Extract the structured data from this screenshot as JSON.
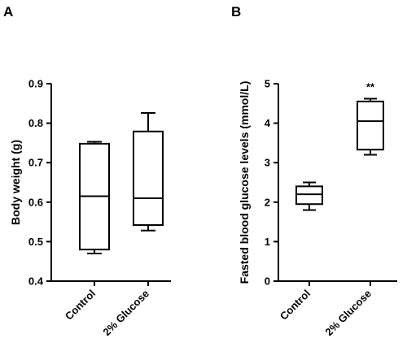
{
  "chart_data": [
    {
      "type": "box",
      "panel_label": "A",
      "title": "",
      "xlabel": "",
      "ylabel": "Body weight (g)",
      "ylim": [
        0.4,
        0.9
      ],
      "yticks": [
        "0.4",
        "0.5",
        "0.6",
        "0.7",
        "0.8",
        "0.9"
      ],
      "categories": [
        "Control",
        "2% Glucose"
      ],
      "boxes": [
        {
          "min": 0.47,
          "q1": 0.48,
          "median": 0.615,
          "q3": 0.748,
          "max": 0.753
        },
        {
          "min": 0.528,
          "q1": 0.542,
          "median": 0.61,
          "q3": 0.779,
          "max": 0.826
        }
      ],
      "annotations": []
    },
    {
      "type": "box",
      "panel_label": "B",
      "title": "",
      "xlabel": "",
      "ylabel": "Fasted blood glucose levels (mmol/L)",
      "ylim": [
        0,
        5
      ],
      "yticks": [
        "0",
        "1",
        "2",
        "3",
        "4",
        "5"
      ],
      "categories": [
        "Control",
        "2% Glucose"
      ],
      "boxes": [
        {
          "min": 1.8,
          "q1": 1.95,
          "median": 2.2,
          "q3": 2.4,
          "max": 2.5
        },
        {
          "min": 3.2,
          "q1": 3.33,
          "median": 4.05,
          "q3": 4.55,
          "max": 4.62
        }
      ],
      "annotations": [
        "",
        "**"
      ]
    }
  ]
}
